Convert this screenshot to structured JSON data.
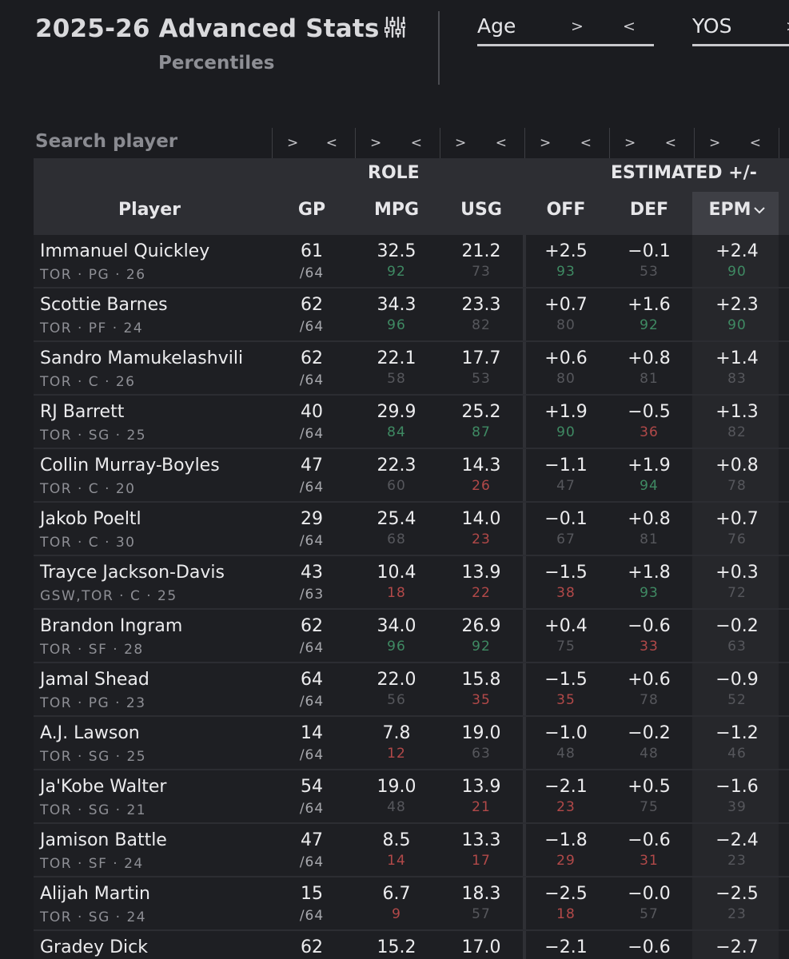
{
  "header": {
    "title": "2025-26 Advanced Stats",
    "subtitle": "Percentiles"
  },
  "filters": [
    {
      "label": "Age",
      "gt": ">",
      "lt": "<"
    },
    {
      "label": "YOS",
      "gt": ">"
    }
  ],
  "search": {
    "placeholder": "Search player"
  },
  "range_arrows": {
    "gt": ">",
    "lt": "<"
  },
  "table": {
    "groups": {
      "role": "ROLE",
      "estimated": "ESTIMATED +/-"
    },
    "columns": {
      "player": "Player",
      "gp": "GP",
      "mpg": "MPG",
      "usg": "USG",
      "off": "OFF",
      "def": "DEF",
      "epm": "EPM"
    },
    "sort_indicator": "chevron-down-icon",
    "rows": [
      {
        "name": "Immanuel Quickley",
        "meta": "TOR · PG · 26",
        "gp": "61",
        "gp_total": "/64",
        "mpg": "32.5",
        "mpg_pct": "92",
        "usg": "21.2",
        "usg_pct": "73",
        "off": "+2.5",
        "off_pct": "93",
        "def": "−0.1",
        "def_pct": "53",
        "epm": "+2.4",
        "epm_pct": "90"
      },
      {
        "name": "Scottie Barnes",
        "meta": "TOR · PF · 24",
        "gp": "62",
        "gp_total": "/64",
        "mpg": "34.3",
        "mpg_pct": "96",
        "usg": "23.3",
        "usg_pct": "82",
        "off": "+0.7",
        "off_pct": "80",
        "def": "+1.6",
        "def_pct": "92",
        "epm": "+2.3",
        "epm_pct": "90"
      },
      {
        "name": "Sandro Mamukelashvili",
        "meta": "TOR · C · 26",
        "gp": "62",
        "gp_total": "/64",
        "mpg": "22.1",
        "mpg_pct": "58",
        "usg": "17.7",
        "usg_pct": "53",
        "off": "+0.6",
        "off_pct": "80",
        "def": "+0.8",
        "def_pct": "81",
        "epm": "+1.4",
        "epm_pct": "83"
      },
      {
        "name": "RJ Barrett",
        "meta": "TOR · SG · 25",
        "gp": "40",
        "gp_total": "/64",
        "mpg": "29.9",
        "mpg_pct": "84",
        "usg": "25.2",
        "usg_pct": "87",
        "off": "+1.9",
        "off_pct": "90",
        "def": "−0.5",
        "def_pct": "36",
        "epm": "+1.3",
        "epm_pct": "82"
      },
      {
        "name": "Collin Murray-Boyles",
        "meta": "TOR · C · 20",
        "gp": "47",
        "gp_total": "/64",
        "mpg": "22.3",
        "mpg_pct": "60",
        "usg": "14.3",
        "usg_pct": "26",
        "off": "−1.1",
        "off_pct": "47",
        "def": "+1.9",
        "def_pct": "94",
        "epm": "+0.8",
        "epm_pct": "78"
      },
      {
        "name": "Jakob Poeltl",
        "meta": "TOR · C · 30",
        "gp": "29",
        "gp_total": "/64",
        "mpg": "25.4",
        "mpg_pct": "68",
        "usg": "14.0",
        "usg_pct": "23",
        "off": "−0.1",
        "off_pct": "67",
        "def": "+0.8",
        "def_pct": "81",
        "epm": "+0.7",
        "epm_pct": "76"
      },
      {
        "name": "Trayce Jackson-Davis",
        "meta": "GSW,TOR · C · 25",
        "gp": "43",
        "gp_total": "/63",
        "mpg": "10.4",
        "mpg_pct": "18",
        "usg": "13.9",
        "usg_pct": "22",
        "off": "−1.5",
        "off_pct": "38",
        "def": "+1.8",
        "def_pct": "93",
        "epm": "+0.3",
        "epm_pct": "72"
      },
      {
        "name": "Brandon Ingram",
        "meta": "TOR · SF · 28",
        "gp": "62",
        "gp_total": "/64",
        "mpg": "34.0",
        "mpg_pct": "96",
        "usg": "26.9",
        "usg_pct": "92",
        "off": "+0.4",
        "off_pct": "75",
        "def": "−0.6",
        "def_pct": "33",
        "epm": "−0.2",
        "epm_pct": "63"
      },
      {
        "name": "Jamal Shead",
        "meta": "TOR · PG · 23",
        "gp": "64",
        "gp_total": "/64",
        "mpg": "22.0",
        "mpg_pct": "56",
        "usg": "15.8",
        "usg_pct": "35",
        "off": "−1.5",
        "off_pct": "35",
        "def": "+0.6",
        "def_pct": "78",
        "epm": "−0.9",
        "epm_pct": "52"
      },
      {
        "name": "A.J. Lawson",
        "meta": "TOR · SG · 25",
        "gp": "14",
        "gp_total": "/64",
        "mpg": "7.8",
        "mpg_pct": "12",
        "usg": "19.0",
        "usg_pct": "63",
        "off": "−1.0",
        "off_pct": "48",
        "def": "−0.2",
        "def_pct": "48",
        "epm": "−1.2",
        "epm_pct": "46"
      },
      {
        "name": "Ja'Kobe Walter",
        "meta": "TOR · SG · 21",
        "gp": "54",
        "gp_total": "/64",
        "mpg": "19.0",
        "mpg_pct": "48",
        "usg": "13.9",
        "usg_pct": "21",
        "off": "−2.1",
        "off_pct": "23",
        "def": "+0.5",
        "def_pct": "75",
        "epm": "−1.6",
        "epm_pct": "39"
      },
      {
        "name": "Jamison Battle",
        "meta": "TOR · SF · 24",
        "gp": "47",
        "gp_total": "/64",
        "mpg": "8.5",
        "mpg_pct": "14",
        "usg": "13.3",
        "usg_pct": "17",
        "off": "−1.8",
        "off_pct": "29",
        "def": "−0.6",
        "def_pct": "31",
        "epm": "−2.4",
        "epm_pct": "23"
      },
      {
        "name": "Alijah Martin",
        "meta": "TOR · SG · 24",
        "gp": "15",
        "gp_total": "/64",
        "mpg": "6.7",
        "mpg_pct": "9",
        "usg": "18.3",
        "usg_pct": "57",
        "off": "−2.5",
        "off_pct": "18",
        "def": "−0.0",
        "def_pct": "57",
        "epm": "−2.5",
        "epm_pct": "23"
      },
      {
        "name": "Gradey Dick",
        "meta": "",
        "gp": "62",
        "gp_total": "",
        "mpg": "15.2",
        "mpg_pct": "",
        "usg": "17.0",
        "usg_pct": "",
        "off": "−2.1",
        "off_pct": "",
        "def": "−0.6",
        "def_pct": "",
        "epm": "−2.7",
        "epm_pct": ""
      }
    ]
  }
}
